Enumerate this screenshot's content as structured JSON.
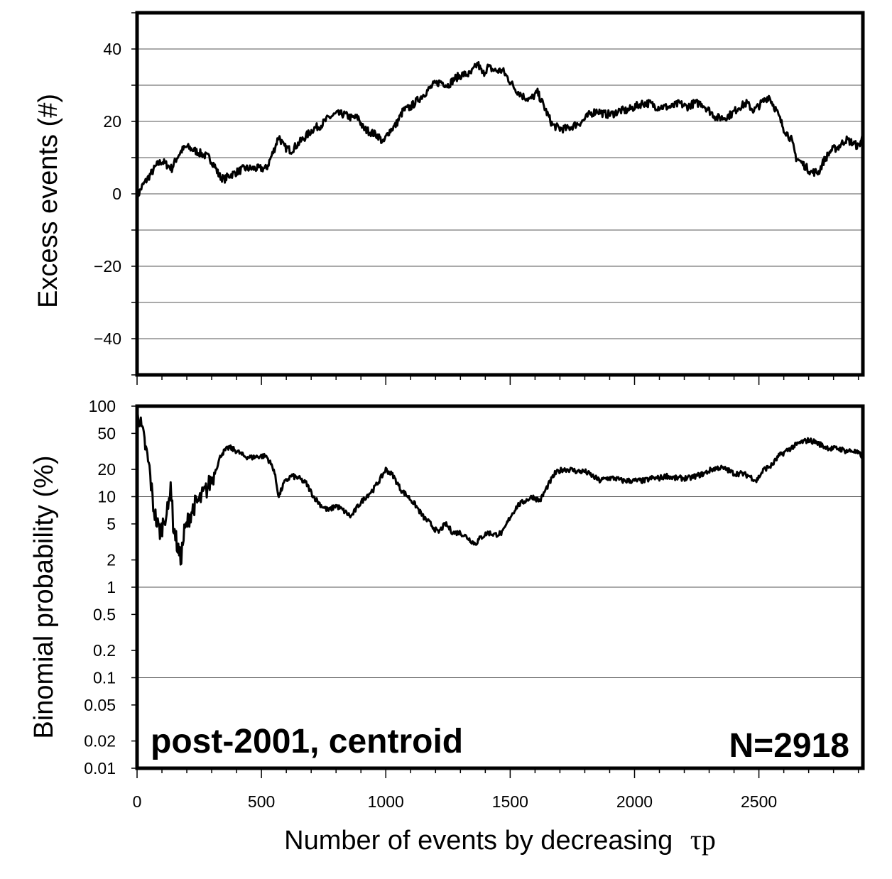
{
  "chart_data": [
    {
      "type": "line",
      "ylabel": "Excess events (#)",
      "ylim": [
        -50,
        50
      ],
      "yticks": [
        -40,
        -20,
        0,
        20,
        40
      ],
      "ytick_labels": [
        "−40",
        "−20",
        "0",
        "20",
        "40"
      ],
      "xlim": [
        0,
        2918
      ],
      "grid": true,
      "series": [
        {
          "points": [
            [
              0,
              -1
            ],
            [
              20,
              2
            ],
            [
              40,
              4
            ],
            [
              60,
              6
            ],
            [
              80,
              8
            ],
            [
              100,
              9
            ],
            [
              120,
              8
            ],
            [
              140,
              7
            ],
            [
              160,
              10
            ],
            [
              180,
              12
            ],
            [
              200,
              13
            ],
            [
              230,
              12
            ],
            [
              260,
              11
            ],
            [
              290,
              10
            ],
            [
              310,
              8
            ],
            [
              330,
              5
            ],
            [
              350,
              4
            ],
            [
              370,
              5
            ],
            [
              400,
              6
            ],
            [
              430,
              7
            ],
            [
              460,
              7
            ],
            [
              490,
              7
            ],
            [
              520,
              7
            ],
            [
              550,
              12
            ],
            [
              570,
              16
            ],
            [
              590,
              13
            ],
            [
              620,
              12
            ],
            [
              650,
              14
            ],
            [
              680,
              16
            ],
            [
              710,
              18
            ],
            [
              740,
              19
            ],
            [
              770,
              21
            ],
            [
              800,
              22
            ],
            [
              830,
              22
            ],
            [
              860,
              21
            ],
            [
              890,
              21
            ],
            [
              910,
              18
            ],
            [
              940,
              17
            ],
            [
              970,
              16
            ],
            [
              990,
              14
            ],
            [
              1010,
              17
            ],
            [
              1040,
              19
            ],
            [
              1070,
              23
            ],
            [
              1100,
              24
            ],
            [
              1130,
              26
            ],
            [
              1160,
              28
            ],
            [
              1190,
              30
            ],
            [
              1220,
              31
            ],
            [
              1250,
              30
            ],
            [
              1280,
              32
            ],
            [
              1310,
              33
            ],
            [
              1340,
              33
            ],
            [
              1370,
              36
            ],
            [
              1390,
              33
            ],
            [
              1410,
              35
            ],
            [
              1440,
              34
            ],
            [
              1470,
              34
            ],
            [
              1490,
              32
            ],
            [
              1520,
              29
            ],
            [
              1550,
              27
            ],
            [
              1580,
              26
            ],
            [
              1610,
              28
            ],
            [
              1630,
              25
            ],
            [
              1650,
              22
            ],
            [
              1670,
              19
            ],
            [
              1700,
              18
            ],
            [
              1730,
              18
            ],
            [
              1760,
              19
            ],
            [
              1790,
              20
            ],
            [
              1820,
              22
            ],
            [
              1850,
              23
            ],
            [
              1880,
              22
            ],
            [
              1910,
              22
            ],
            [
              1940,
              23
            ],
            [
              1970,
              23
            ],
            [
              2000,
              24
            ],
            [
              2030,
              25
            ],
            [
              2060,
              25
            ],
            [
              2090,
              24
            ],
            [
              2120,
              24
            ],
            [
              2150,
              24
            ],
            [
              2180,
              25
            ],
            [
              2210,
              24
            ],
            [
              2240,
              25
            ],
            [
              2270,
              25
            ],
            [
              2300,
              23
            ],
            [
              2330,
              21
            ],
            [
              2360,
              21
            ],
            [
              2390,
              22
            ],
            [
              2420,
              24
            ],
            [
              2450,
              25
            ],
            [
              2480,
              23
            ],
            [
              2510,
              25
            ],
            [
              2540,
              27
            ],
            [
              2570,
              23
            ],
            [
              2600,
              18
            ],
            [
              2630,
              15
            ],
            [
              2650,
              10
            ],
            [
              2680,
              8
            ],
            [
              2710,
              6
            ],
            [
              2740,
              6
            ],
            [
              2760,
              9
            ],
            [
              2790,
              12
            ],
            [
              2820,
              13
            ],
            [
              2850,
              15
            ],
            [
              2880,
              14
            ],
            [
              2900,
              13
            ],
            [
              2918,
              16
            ]
          ]
        }
      ]
    },
    {
      "type": "line",
      "ylabel": "Binomial probability (%)",
      "xlabel": "Number of events by decreasing",
      "xlabel_symbol": "τp",
      "ylim": [
        0.01,
        100
      ],
      "yscale": "log",
      "yticks": [
        0.01,
        0.02,
        0.05,
        0.1,
        0.2,
        0.5,
        1,
        2,
        5,
        10,
        20,
        50,
        100
      ],
      "ytick_labels": [
        "0.01",
        "0.02",
        "0.05",
        "0.1",
        "0.2",
        "0.5",
        "1",
        "2",
        "5",
        "10",
        "20",
        "50",
        "100"
      ],
      "xlim": [
        0,
        2918
      ],
      "xticks": [
        0,
        500,
        1000,
        1500,
        2000,
        2500
      ],
      "xtick_labels": [
        "0",
        "500",
        "1000",
        "1500",
        "2000",
        "2500"
      ],
      "grid": true,
      "series": [
        {
          "points": [
            [
              0,
              100
            ],
            [
              15,
              60
            ],
            [
              30,
              40
            ],
            [
              50,
              20
            ],
            [
              65,
              8
            ],
            [
              80,
              5
            ],
            [
              95,
              4
            ],
            [
              110,
              6
            ],
            [
              125,
              7
            ],
            [
              135,
              15
            ],
            [
              145,
              5
            ],
            [
              160,
              3
            ],
            [
              175,
              2
            ],
            [
              190,
              4
            ],
            [
              210,
              6
            ],
            [
              230,
              8
            ],
            [
              250,
              9
            ],
            [
              280,
              12
            ],
            [
              310,
              18
            ],
            [
              340,
              30
            ],
            [
              370,
              35
            ],
            [
              400,
              32
            ],
            [
              430,
              28
            ],
            [
              460,
              27
            ],
            [
              490,
              28
            ],
            [
              520,
              28
            ],
            [
              550,
              20
            ],
            [
              570,
              10
            ],
            [
              590,
              14
            ],
            [
              620,
              17
            ],
            [
              650,
              16
            ],
            [
              680,
              14
            ],
            [
              710,
              10
            ],
            [
              740,
              8
            ],
            [
              770,
              7
            ],
            [
              800,
              8
            ],
            [
              830,
              7
            ],
            [
              860,
              6
            ],
            [
              890,
              8
            ],
            [
              920,
              10
            ],
            [
              950,
              12
            ],
            [
              980,
              16
            ],
            [
              1000,
              20
            ],
            [
              1030,
              17
            ],
            [
              1060,
              12
            ],
            [
              1090,
              10
            ],
            [
              1120,
              8
            ],
            [
              1150,
              6
            ],
            [
              1180,
              5
            ],
            [
              1210,
              4
            ],
            [
              1240,
              5
            ],
            [
              1270,
              4
            ],
            [
              1300,
              4
            ],
            [
              1330,
              3.5
            ],
            [
              1360,
              3
            ],
            [
              1380,
              3.5
            ],
            [
              1410,
              4
            ],
            [
              1440,
              3.8
            ],
            [
              1470,
              4
            ],
            [
              1500,
              6
            ],
            [
              1530,
              8
            ],
            [
              1560,
              9
            ],
            [
              1590,
              10
            ],
            [
              1620,
              9
            ],
            [
              1650,
              13
            ],
            [
              1680,
              18
            ],
            [
              1710,
              20
            ],
            [
              1740,
              20
            ],
            [
              1770,
              19
            ],
            [
              1800,
              19
            ],
            [
              1830,
              17
            ],
            [
              1860,
              15
            ],
            [
              1890,
              16
            ],
            [
              1920,
              16
            ],
            [
              1950,
              15
            ],
            [
              1980,
              15
            ],
            [
              2010,
              15
            ],
            [
              2040,
              15
            ],
            [
              2070,
              16
            ],
            [
              2100,
              16
            ],
            [
              2130,
              17
            ],
            [
              2160,
              16
            ],
            [
              2190,
              16
            ],
            [
              2220,
              16
            ],
            [
              2250,
              17
            ],
            [
              2280,
              18
            ],
            [
              2310,
              20
            ],
            [
              2340,
              21
            ],
            [
              2370,
              20
            ],
            [
              2400,
              18
            ],
            [
              2430,
              18
            ],
            [
              2460,
              17
            ],
            [
              2490,
              15
            ],
            [
              2520,
              20
            ],
            [
              2550,
              22
            ],
            [
              2580,
              28
            ],
            [
              2610,
              32
            ],
            [
              2640,
              36
            ],
            [
              2670,
              40
            ],
            [
              2700,
              42
            ],
            [
              2730,
              40
            ],
            [
              2760,
              36
            ],
            [
              2790,
              34
            ],
            [
              2820,
              34
            ],
            [
              2850,
              32
            ],
            [
              2880,
              32
            ],
            [
              2918,
              28
            ]
          ]
        }
      ]
    }
  ],
  "annotations": {
    "label_left": "post-2001, centroid",
    "label_right": "N=2918"
  }
}
